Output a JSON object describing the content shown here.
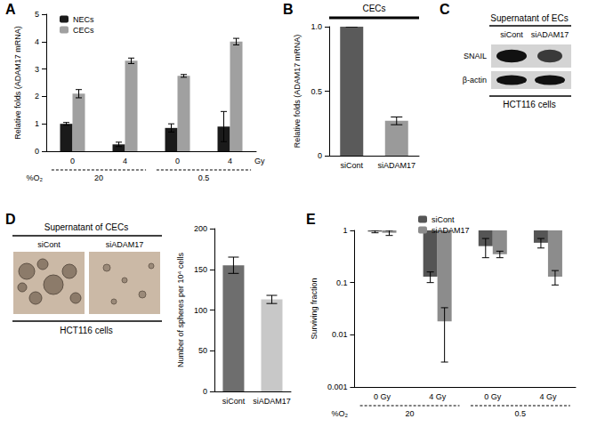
{
  "figure": {
    "panel_labels": [
      "A",
      "B",
      "C",
      "D",
      "E"
    ]
  },
  "chart_data": [
    {
      "type": "bar",
      "ylabel": "Relative folds (ADAM17 mRNA)",
      "categories": [
        "0",
        "4",
        "0",
        "4"
      ],
      "x_unit": "Gy",
      "group_label": "%O₂",
      "groups": [
        "20",
        "0.5"
      ],
      "series": [
        {
          "name": "NECs",
          "color": "#1a1a1a",
          "values": [
            1.0,
            0.25,
            0.85,
            0.9
          ],
          "errors": [
            0.05,
            0.08,
            0.15,
            0.55
          ]
        },
        {
          "name": "CECs",
          "color": "#a0a0a0",
          "values": [
            2.1,
            3.3,
            2.75,
            4.0
          ],
          "errors": [
            0.15,
            0.1,
            0.05,
            0.12
          ]
        }
      ],
      "ylim": [
        0,
        5
      ],
      "yticks": [
        0,
        1,
        2,
        3,
        4,
        5
      ],
      "legend": "top-left",
      "grid": false
    },
    {
      "type": "bar",
      "title": "CECs",
      "ylabel": "Relative folds (ADAM17 mRNA)",
      "categories": [
        "siCont",
        "siADAM17"
      ],
      "values": [
        1.0,
        0.27
      ],
      "errors": [
        0,
        0.03
      ],
      "colors": [
        "#5a5a5a",
        "#9a9a9a"
      ],
      "ylim": [
        0,
        1
      ],
      "yticks": [
        0,
        0.5,
        {
          "value": 1,
          "label": "1.0"
        }
      ],
      "grid": false
    },
    {
      "type": "bar",
      "ylabel": "Number of spheres per 10⁴ cells",
      "categories": [
        "siCont",
        "siADAM17"
      ],
      "values": [
        155,
        113
      ],
      "errors": [
        10,
        5
      ],
      "colors": [
        "#6e6e6e",
        "#c8c8c8"
      ],
      "ylim": [
        0,
        200
      ],
      "yticks": [
        0,
        50,
        100,
        150,
        200
      ],
      "grid": false
    },
    {
      "type": "bar",
      "ylabel": "Surviving fraction",
      "categories": [
        "0 Gy",
        "4 Gy",
        "0 Gy",
        "4 Gy"
      ],
      "group_label": "%O₂",
      "groups": [
        "20",
        "0.5"
      ],
      "series": [
        {
          "name": "siCont",
          "color": "#555555",
          "values": [
            0.95,
            0.13,
            0.5,
            0.58
          ],
          "errors": [
            0.05,
            0.03,
            0.2,
            0.12
          ]
        },
        {
          "name": "siADAM17",
          "color": "#8c8c8c",
          "values": [
            0.9,
            0.018,
            0.35,
            0.13
          ],
          "errors": [
            0.1,
            0.015,
            0.05,
            0.04
          ]
        }
      ],
      "ylim": [
        0.001,
        1
      ],
      "yticks": [
        0.001,
        0.01,
        0.1,
        1
      ],
      "log": "y",
      "legend": "top-left",
      "grid": false
    }
  ],
  "blot": {
    "title": "Supernatant of ECs",
    "lanes": [
      "siCont",
      "siADAM17"
    ],
    "rows": [
      "SNAIL",
      "β-actin"
    ],
    "cells": "HCT116 cells"
  },
  "spheres": {
    "title": "Supernatant of CECs",
    "conditions": [
      "siCont",
      "siADAM17"
    ],
    "cells": "HCT116 cells"
  }
}
